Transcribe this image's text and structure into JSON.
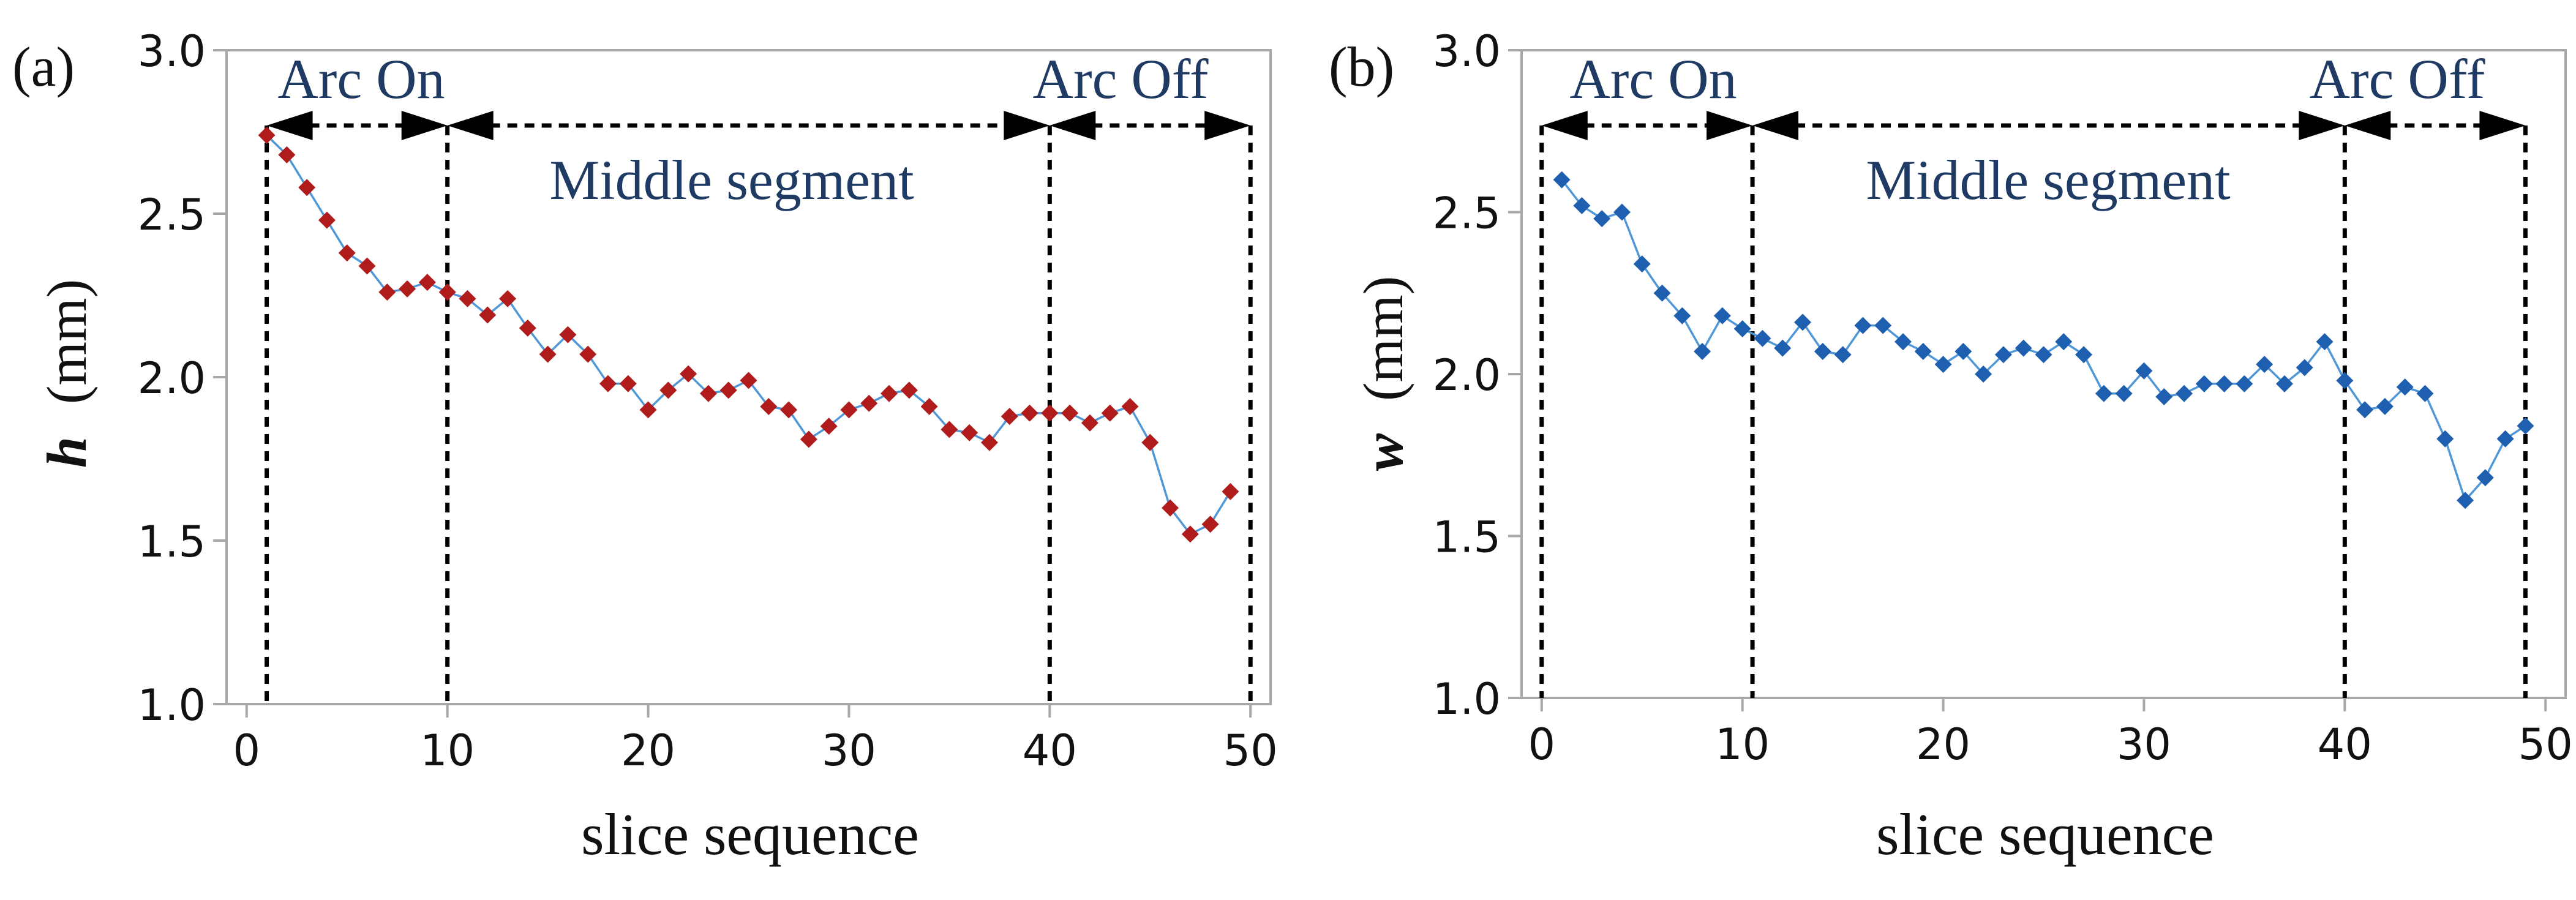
{
  "chart_data": [
    {
      "type": "line",
      "panel_label": "(a)",
      "title": "",
      "xlabel": "slice sequence",
      "ylabel_var": "h",
      "ylabel_unit": "(mm)",
      "xlim": [
        -1,
        51
      ],
      "ylim": [
        1.0,
        3.0
      ],
      "xticks": [
        0,
        10,
        20,
        30,
        40,
        50
      ],
      "yticks": [
        1.0,
        1.5,
        2.0,
        2.5,
        3.0
      ],
      "xtick_labels": [
        "0",
        "10",
        "20",
        "30",
        "40",
        "50"
      ],
      "ytick_labels": [
        "1.0",
        "1.5",
        "2.0",
        "2.5",
        "3.0"
      ],
      "grid": false,
      "series": [
        {
          "name": "h",
          "color": "#b01c1c",
          "line_color": "#4f97d6",
          "x": [
            1,
            2,
            3,
            4,
            5,
            6,
            7,
            8,
            9,
            10,
            11,
            12,
            13,
            14,
            15,
            16,
            17,
            18,
            19,
            20,
            21,
            22,
            23,
            24,
            25,
            26,
            27,
            28,
            29,
            30,
            31,
            32,
            33,
            34,
            35,
            36,
            37,
            38,
            39,
            40,
            41,
            42,
            43,
            44,
            45,
            46,
            47,
            48,
            49
          ],
          "values": [
            2.74,
            2.68,
            2.58,
            2.48,
            2.38,
            2.34,
            2.26,
            2.27,
            2.29,
            2.26,
            2.24,
            2.19,
            2.24,
            2.15,
            2.07,
            2.13,
            2.07,
            1.98,
            1.98,
            1.9,
            1.96,
            2.01,
            1.95,
            1.96,
            1.99,
            1.91,
            1.9,
            1.81,
            1.85,
            1.9,
            1.92,
            1.95,
            1.96,
            1.91,
            1.84,
            1.83,
            1.8,
            1.88,
            1.89,
            1.89,
            1.89,
            1.86,
            1.89,
            1.91,
            1.8,
            1.6,
            1.52,
            1.55,
            1.65
          ]
        }
      ],
      "dashed_verticals": [
        1,
        10,
        40,
        50
      ],
      "segments": [
        {
          "label": "Arc On",
          "from": 1,
          "to": 10
        },
        {
          "label": "Middle segment",
          "from": 10,
          "to": 40
        },
        {
          "label": "Arc Off",
          "from": 40,
          "to": 50
        }
      ],
      "marker": "diamond"
    },
    {
      "type": "line",
      "panel_label": "(b)",
      "title": "",
      "xlabel": "slice sequence",
      "ylabel_var": "w",
      "ylabel_unit": "(mm)",
      "xlim": [
        -1,
        51
      ],
      "ylim": [
        1.0,
        3.0
      ],
      "xticks": [
        0,
        10,
        20,
        30,
        40,
        50
      ],
      "yticks": [
        1.0,
        1.5,
        2.0,
        2.5,
        3.0
      ],
      "xtick_labels": [
        "0",
        "10",
        "20",
        "30",
        "40",
        "50"
      ],
      "ytick_labels": [
        "1.0",
        "1.5",
        "2.0",
        "2.5",
        "3.0"
      ],
      "grid": false,
      "series": [
        {
          "name": "w",
          "color": "#1f5faf",
          "line_color": "#4f97d6",
          "x": [
            1,
            2,
            3,
            4,
            5,
            6,
            7,
            8,
            9,
            10,
            11,
            12,
            13,
            14,
            15,
            16,
            17,
            18,
            19,
            20,
            21,
            22,
            23,
            24,
            25,
            26,
            27,
            28,
            29,
            30,
            31,
            32,
            33,
            34,
            35,
            36,
            37,
            38,
            39,
            40,
            41,
            42,
            43,
            44,
            45,
            46,
            47,
            48,
            49
          ],
          "values": [
            2.6,
            2.52,
            2.48,
            2.5,
            2.34,
            2.25,
            2.18,
            2.07,
            2.18,
            2.14,
            2.11,
            2.08,
            2.16,
            2.07,
            2.06,
            2.15,
            2.15,
            2.1,
            2.07,
            2.03,
            2.07,
            2.0,
            2.06,
            2.08,
            2.06,
            2.1,
            2.06,
            1.94,
            1.94,
            2.01,
            1.93,
            1.94,
            1.97,
            1.97,
            1.97,
            2.03,
            1.97,
            2.02,
            2.1,
            1.98,
            1.89,
            1.9,
            1.96,
            1.94,
            1.8,
            1.61,
            1.68,
            1.8,
            1.84
          ]
        }
      ],
      "dashed_verticals": [
        0,
        10.5,
        40,
        49
      ],
      "segments": [
        {
          "label": "Arc On",
          "from": 0,
          "to": 10.5
        },
        {
          "label": "Middle segment",
          "from": 10.5,
          "to": 40
        },
        {
          "label": "Arc Off",
          "from": 40,
          "to": 49
        }
      ],
      "marker": "diamond"
    }
  ],
  "colors": {
    "frame": "#a8a8a8",
    "annotation": "#1f3a63",
    "text": "#111111"
  }
}
